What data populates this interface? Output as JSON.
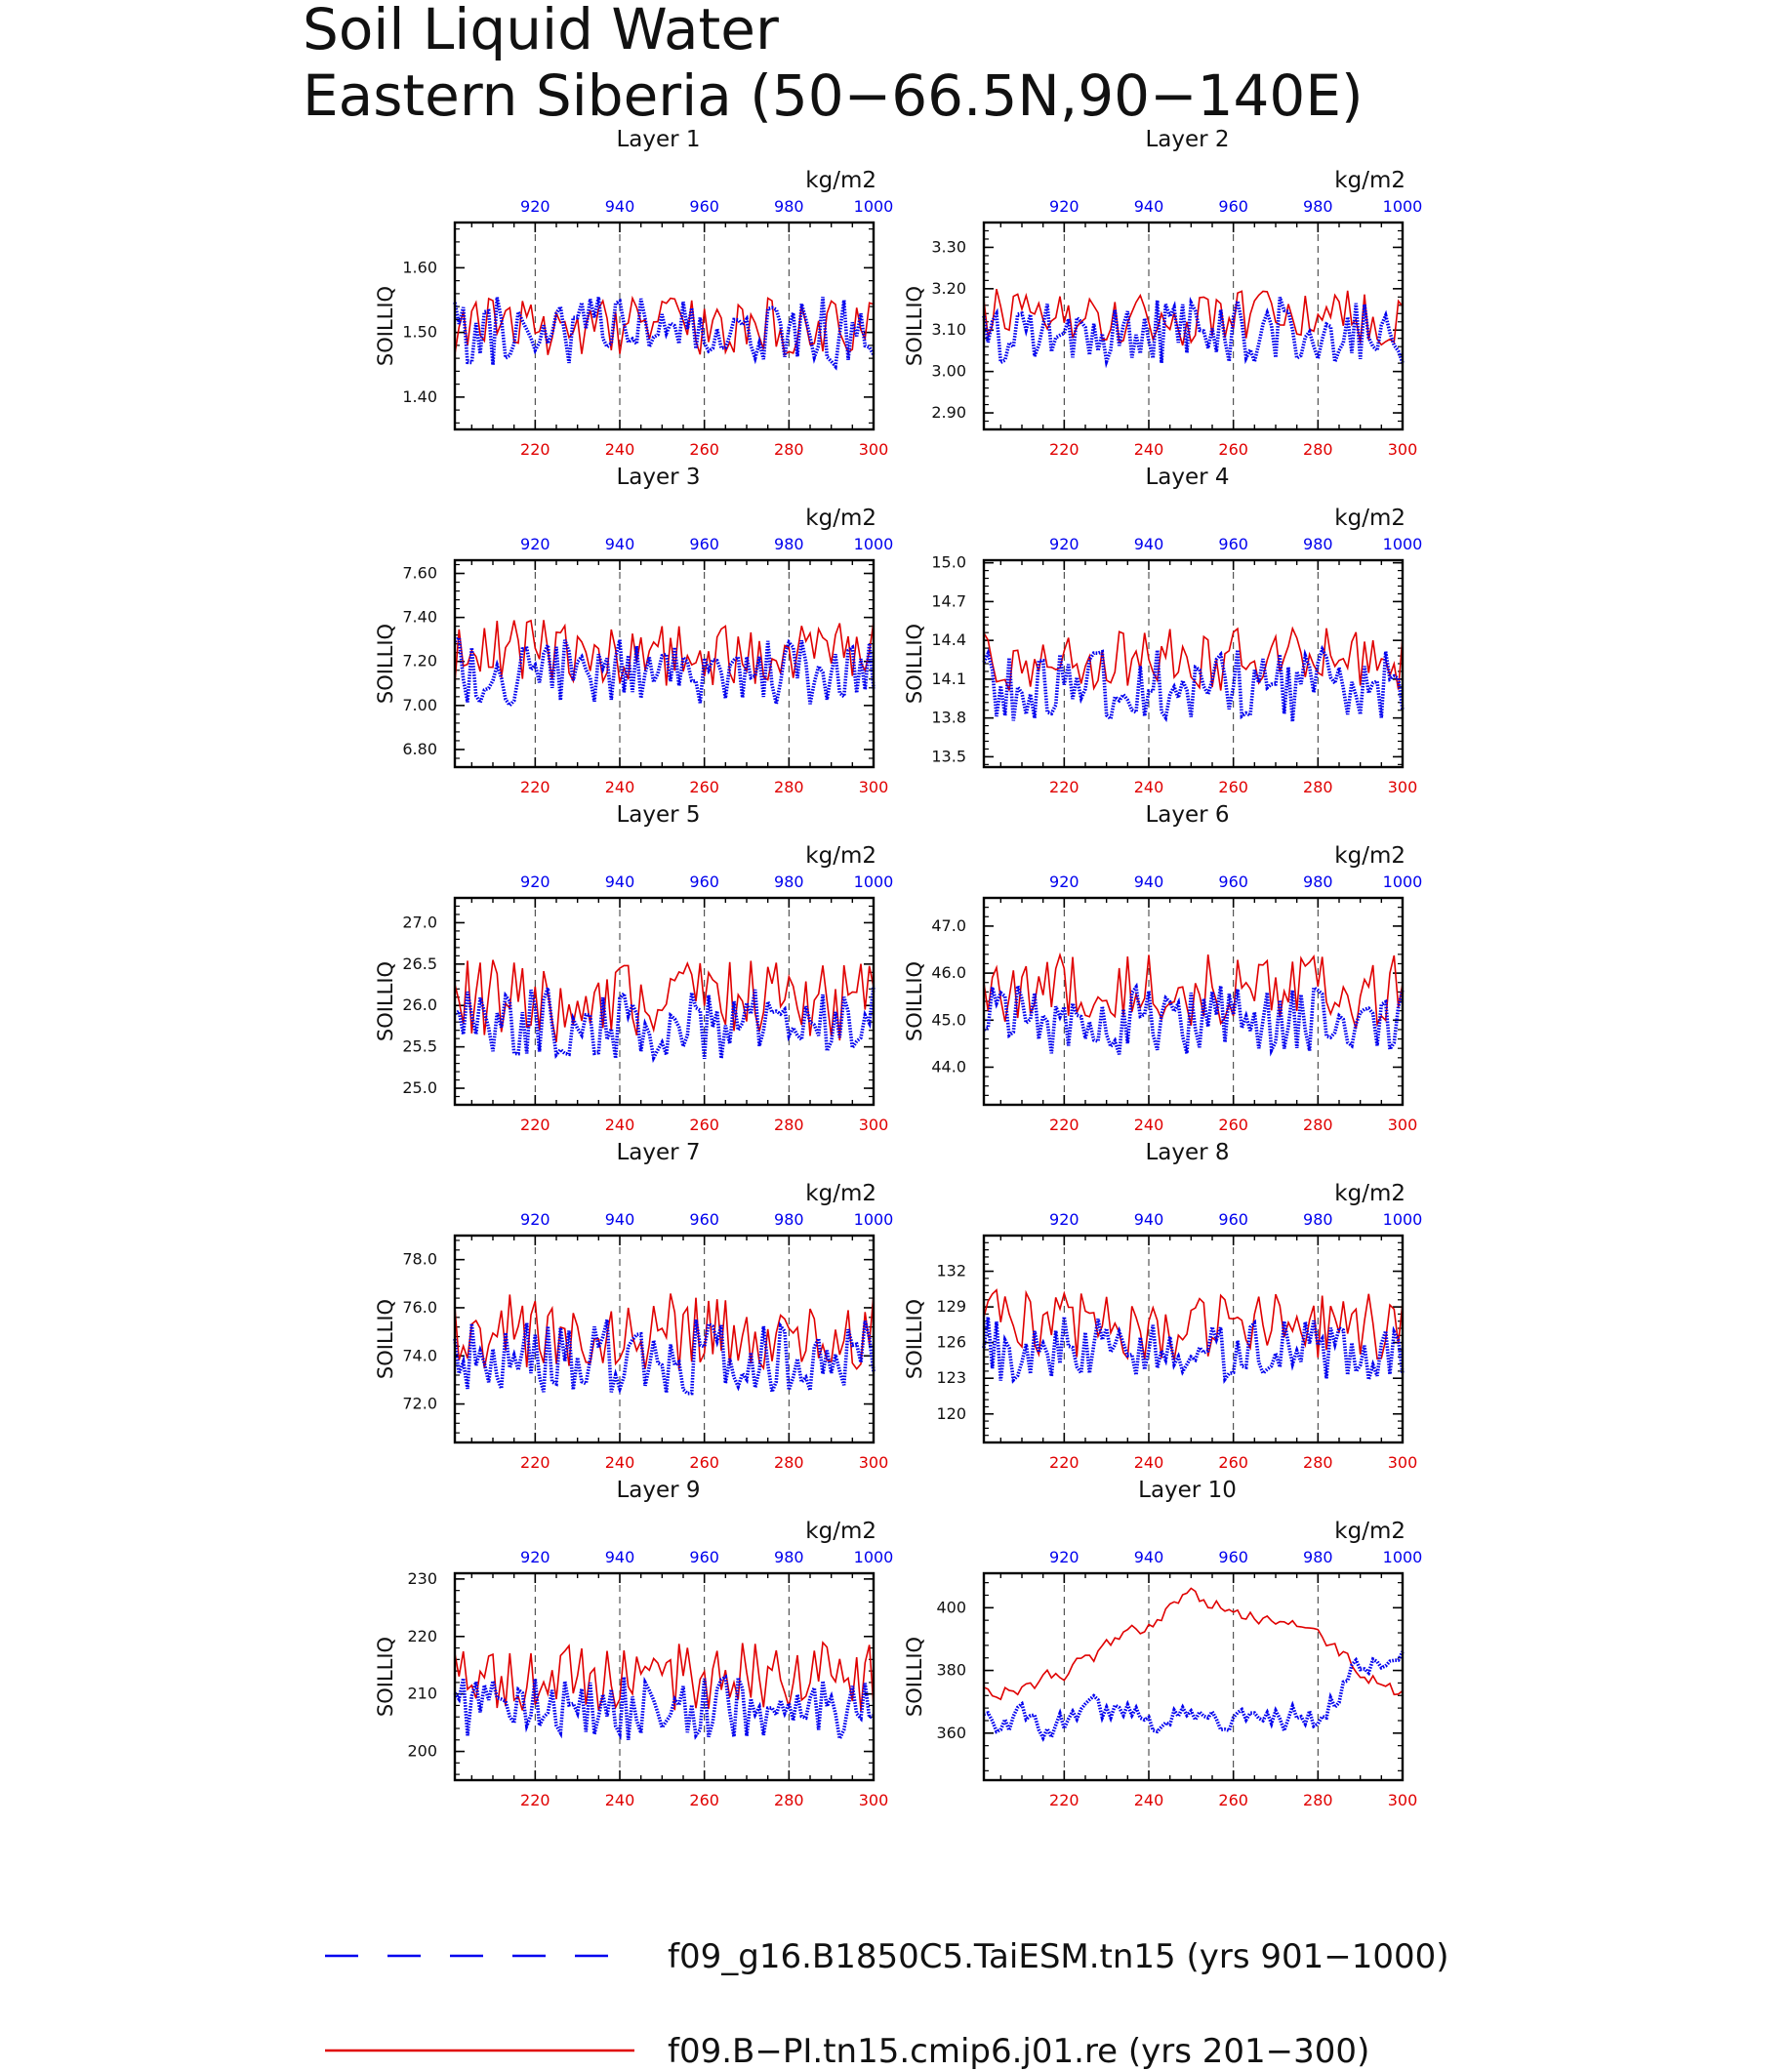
{
  "figure": {
    "title_line1": "Soil Liquid Water",
    "title_line2": "Eastern Siberia (50−66.5N,90−140E)"
  },
  "chart_data": {
    "type": "line",
    "units": "kg/m2",
    "ylabel": "SOILLIQ",
    "bottom_axis": {
      "range": [
        201,
        300
      ],
      "ticks": [
        "220",
        "240",
        "260",
        "280",
        "300"
      ],
      "color": "#e00000"
    },
    "top_axis": {
      "range": [
        901,
        1000
      ],
      "ticks": [
        "920",
        "940",
        "960",
        "980",
        "1000"
      ],
      "color": "#0000ee"
    },
    "grid": "dashed vertical lines at 220, 240, 260, 280",
    "legend_placement": "bottom",
    "series_styles": {
      "blue": {
        "color": "#0000ee",
        "style": "thick dotted"
      },
      "red": {
        "color": "#e00000",
        "style": "thin solid"
      }
    },
    "legend": [
      {
        "label": "f09_g16.B1850C5.TaiESM.tn15 (yrs 901−1000)",
        "color": "#0000ee",
        "style": "dashed"
      },
      {
        "label": "f09.B−PI.tn15.cmip6.j01.re (yrs 201−300)",
        "color": "#e00000",
        "style": "solid"
      }
    ],
    "panels": [
      {
        "title": "Layer 1",
        "ylim": [
          1.35,
          1.67
        ],
        "yticks": [
          1.4,
          1.5,
          1.6
        ],
        "ytick_labels": [
          "1.40",
          "1.50",
          "1.60"
        ],
        "blue_mean": 1.5,
        "blue_amp": 0.055,
        "red_mean": 1.51,
        "red_amp": 0.045,
        "seed": 11
      },
      {
        "title": "Layer 2",
        "ylim": [
          2.86,
          3.36
        ],
        "yticks": [
          2.9,
          3.0,
          3.1,
          3.2,
          3.3
        ],
        "ytick_labels": [
          "2.90",
          "3.00",
          "3.10",
          "3.20",
          "3.30"
        ],
        "blue_mean": 3.1,
        "blue_amp": 0.08,
        "red_mean": 3.13,
        "red_amp": 0.07,
        "seed": 23
      },
      {
        "title": "Layer 3",
        "ylim": [
          6.72,
          7.66
        ],
        "yticks": [
          6.8,
          7.0,
          7.2,
          7.4,
          7.6
        ],
        "ytick_labels": [
          "6.80",
          "7.00",
          "7.20",
          "7.40",
          "7.60"
        ],
        "blue_mean": 7.15,
        "blue_amp": 0.16,
        "red_mean": 7.24,
        "red_amp": 0.15,
        "seed": 37
      },
      {
        "title": "Layer 4",
        "ylim": [
          13.42,
          15.02
        ],
        "yticks": [
          13.5,
          13.8,
          14.1,
          14.4,
          14.7,
          15.0
        ],
        "ytick_labels": [
          "13.5",
          "13.8",
          "14.1",
          "14.4",
          "14.7",
          "15.0"
        ],
        "blue_mean": 14.05,
        "blue_amp": 0.28,
        "red_mean": 14.25,
        "red_amp": 0.25,
        "seed": 41
      },
      {
        "title": "Layer 5",
        "ylim": [
          24.8,
          27.3
        ],
        "yticks": [
          25.0,
          25.5,
          26.0,
          26.5,
          27.0
        ],
        "ytick_labels": [
          "25.0",
          "25.5",
          "26.0",
          "26.5",
          "27.0"
        ],
        "blue_mean": 25.8,
        "blue_amp": 0.45,
        "red_mean": 26.05,
        "red_amp": 0.5,
        "seed": 53
      },
      {
        "title": "Layer 6",
        "ylim": [
          43.2,
          47.6
        ],
        "yticks": [
          44.0,
          45.0,
          46.0,
          47.0
        ],
        "ytick_labels": [
          "44.0",
          "45.0",
          "46.0",
          "47.0"
        ],
        "blue_mean": 45.0,
        "blue_amp": 0.75,
        "red_mean": 45.6,
        "red_amp": 0.8,
        "seed": 61
      },
      {
        "title": "Layer 7",
        "ylim": [
          70.4,
          79.0
        ],
        "yticks": [
          72.0,
          74.0,
          76.0,
          78.0
        ],
        "ytick_labels": [
          "72.0",
          "74.0",
          "76.0",
          "78.0"
        ],
        "blue_mean": 74.0,
        "blue_amp": 1.6,
        "red_mean": 75.0,
        "red_amp": 1.6,
        "seed": 71
      },
      {
        "title": "Layer 8",
        "ylim": [
          117.6,
          135.0
        ],
        "yticks": [
          120,
          123,
          126,
          129,
          132
        ],
        "ytick_labels": [
          "120",
          "123",
          "126",
          "129",
          "132"
        ],
        "blue_mean": 125.5,
        "blue_amp": 2.8,
        "red_mean": 127.5,
        "red_amp": 3.0,
        "seed": 83
      },
      {
        "title": "Layer 9",
        "ylim": [
          195.0,
          231.0
        ],
        "yticks": [
          200,
          210,
          220,
          230
        ],
        "ytick_labels": [
          "200",
          "210",
          "220",
          "230"
        ],
        "blue_mean": 207.5,
        "blue_amp": 5.5,
        "red_mean": 213.0,
        "red_amp": 6.0,
        "seed": 97
      },
      {
        "title": "Layer 10",
        "ylim": [
          345.0,
          411.0
        ],
        "yticks": [
          360,
          380,
          400
        ],
        "ytick_labels": [
          "360",
          "380",
          "400"
        ],
        "blue_mean": 365.0,
        "blue_amp": 5.0,
        "red_mean": 385.0,
        "red_amp": 4.0,
        "seed": 101
      }
    ]
  }
}
